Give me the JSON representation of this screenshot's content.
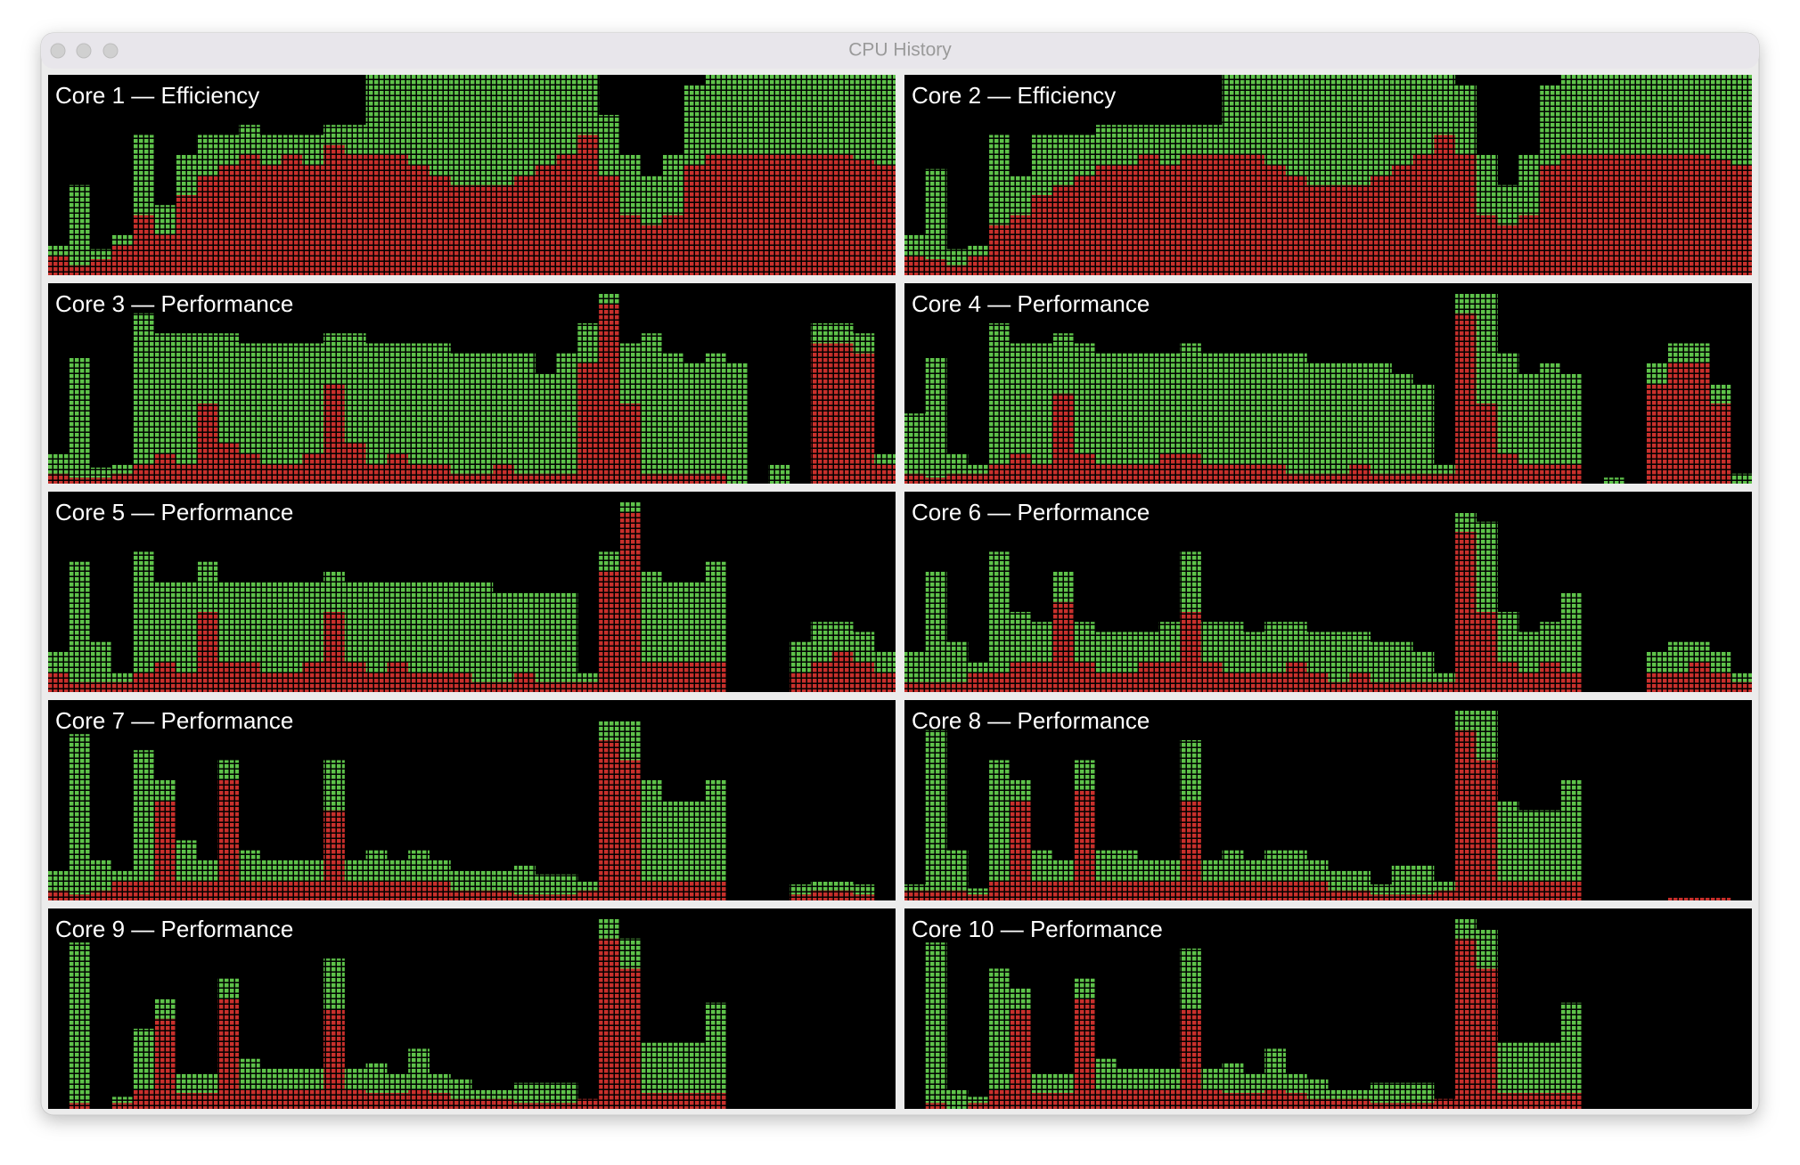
{
  "window": {
    "title": "CPU History"
  },
  "chart_data": [
    {
      "type": "bar",
      "stacked": true,
      "title": "Core 1 — Efficiency",
      "ylim": [
        0,
        100
      ],
      "series": [
        {
          "color": "#c8302c",
          "values": [
            10,
            5,
            8,
            15,
            30,
            20,
            40,
            50,
            55,
            60,
            55,
            60,
            55,
            65,
            60,
            60,
            60,
            55,
            50,
            45,
            45,
            45,
            50,
            55,
            60,
            70,
            50,
            30,
            25,
            30,
            55,
            60,
            60,
            60,
            60,
            60,
            60,
            60,
            58,
            55
          ]
        },
        {
          "color": "#5ec24a",
          "values": [
            5,
            40,
            5,
            5,
            40,
            15,
            20,
            20,
            15,
            15,
            15,
            10,
            15,
            10,
            15,
            40,
            40,
            45,
            50,
            55,
            55,
            55,
            50,
            45,
            40,
            30,
            30,
            30,
            25,
            30,
            40,
            40,
            40,
            40,
            40,
            40,
            40,
            40,
            42,
            45
          ]
        }
      ]
    },
    {
      "type": "bar",
      "stacked": true,
      "title": "Core 2 — Efficiency",
      "ylim": [
        0,
        100
      ],
      "series": [
        {
          "color": "#c8302c",
          "values": [
            10,
            8,
            5,
            10,
            25,
            30,
            40,
            45,
            50,
            55,
            55,
            60,
            55,
            60,
            60,
            60,
            60,
            55,
            50,
            45,
            45,
            45,
            50,
            55,
            60,
            70,
            60,
            30,
            25,
            30,
            55,
            60,
            60,
            60,
            60,
            60,
            60,
            60,
            58,
            55
          ]
        },
        {
          "color": "#5ec24a",
          "values": [
            10,
            45,
            8,
            5,
            45,
            20,
            30,
            25,
            20,
            20,
            20,
            15,
            20,
            15,
            15,
            40,
            40,
            45,
            50,
            55,
            55,
            55,
            50,
            45,
            40,
            30,
            35,
            30,
            20,
            30,
            40,
            40,
            40,
            40,
            40,
            40,
            40,
            40,
            42,
            45
          ]
        }
      ]
    },
    {
      "type": "bar",
      "stacked": true,
      "title": "Core 3 — Performance",
      "ylim": [
        0,
        100
      ],
      "series": [
        {
          "color": "#c8302c",
          "values": [
            5,
            3,
            3,
            5,
            10,
            15,
            10,
            40,
            20,
            15,
            10,
            10,
            15,
            50,
            20,
            10,
            15,
            10,
            10,
            5,
            5,
            10,
            5,
            5,
            5,
            60,
            90,
            40,
            5,
            5,
            5,
            5,
            0,
            0,
            0,
            0,
            70,
            70,
            65,
            10
          ]
        },
        {
          "color": "#5ec24a",
          "values": [
            10,
            60,
            5,
            5,
            75,
            60,
            65,
            35,
            55,
            55,
            60,
            60,
            55,
            25,
            55,
            60,
            55,
            60,
            60,
            60,
            60,
            55,
            60,
            50,
            60,
            20,
            5,
            30,
            70,
            60,
            55,
            60,
            60,
            0,
            10,
            0,
            10,
            10,
            10,
            5
          ]
        }
      ]
    },
    {
      "type": "bar",
      "stacked": true,
      "title": "Core 4 — Performance",
      "ylim": [
        0,
        100
      ],
      "series": [
        {
          "color": "#c8302c",
          "values": [
            5,
            3,
            5,
            5,
            10,
            15,
            10,
            45,
            15,
            10,
            10,
            10,
            15,
            15,
            10,
            10,
            10,
            10,
            5,
            5,
            5,
            10,
            5,
            5,
            5,
            5,
            85,
            40,
            15,
            10,
            10,
            10,
            0,
            0,
            0,
            50,
            60,
            60,
            40,
            0
          ]
        },
        {
          "color": "#5ec24a",
          "values": [
            30,
            60,
            10,
            5,
            70,
            55,
            60,
            30,
            55,
            55,
            55,
            55,
            50,
            55,
            55,
            55,
            55,
            55,
            60,
            55,
            55,
            50,
            55,
            50,
            45,
            5,
            10,
            55,
            50,
            45,
            50,
            45,
            0,
            3,
            0,
            10,
            10,
            10,
            10,
            5
          ]
        }
      ]
    },
    {
      "type": "bar",
      "stacked": true,
      "title": "Core 5 — Performance",
      "ylim": [
        0,
        100
      ],
      "series": [
        {
          "color": "#c8302c",
          "values": [
            10,
            5,
            5,
            5,
            10,
            15,
            10,
            40,
            15,
            15,
            10,
            10,
            15,
            40,
            15,
            10,
            15,
            10,
            10,
            10,
            5,
            5,
            10,
            5,
            5,
            5,
            60,
            90,
            15,
            15,
            15,
            15,
            0,
            0,
            0,
            10,
            15,
            20,
            15,
            10
          ]
        },
        {
          "color": "#5ec24a",
          "values": [
            10,
            60,
            20,
            5,
            60,
            40,
            45,
            25,
            40,
            40,
            45,
            45,
            40,
            20,
            40,
            45,
            40,
            45,
            45,
            45,
            50,
            45,
            40,
            45,
            45,
            5,
            10,
            5,
            45,
            40,
            40,
            50,
            0,
            0,
            0,
            15,
            20,
            15,
            15,
            10
          ]
        }
      ]
    },
    {
      "type": "bar",
      "stacked": true,
      "title": "Core 6 — Performance",
      "ylim": [
        0,
        100
      ],
      "series": [
        {
          "color": "#c8302c",
          "values": [
            5,
            5,
            5,
            10,
            10,
            15,
            15,
            45,
            15,
            10,
            10,
            15,
            15,
            40,
            15,
            10,
            10,
            10,
            15,
            10,
            5,
            10,
            5,
            5,
            5,
            5,
            80,
            40,
            15,
            10,
            15,
            10,
            0,
            0,
            0,
            10,
            10,
            15,
            10,
            5
          ]
        },
        {
          "color": "#5ec24a",
          "values": [
            15,
            55,
            20,
            5,
            60,
            25,
            20,
            15,
            20,
            20,
            20,
            15,
            20,
            30,
            20,
            25,
            20,
            25,
            20,
            20,
            25,
            20,
            20,
            20,
            15,
            5,
            10,
            45,
            25,
            20,
            20,
            40,
            0,
            0,
            0,
            10,
            15,
            10,
            10,
            5
          ]
        }
      ]
    },
    {
      "type": "bar",
      "stacked": true,
      "title": "Core 7 — Performance",
      "ylim": [
        0,
        100
      ],
      "series": [
        {
          "color": "#c8302c",
          "values": [
            5,
            3,
            5,
            10,
            10,
            50,
            10,
            10,
            60,
            10,
            10,
            10,
            10,
            45,
            10,
            10,
            10,
            10,
            10,
            5,
            5,
            5,
            3,
            3,
            3,
            5,
            80,
            70,
            10,
            10,
            10,
            10,
            0,
            0,
            0,
            3,
            5,
            5,
            3,
            0
          ]
        },
        {
          "color": "#5ec24a",
          "values": [
            10,
            80,
            15,
            5,
            65,
            10,
            20,
            10,
            10,
            15,
            10,
            10,
            10,
            25,
            10,
            15,
            10,
            15,
            10,
            10,
            10,
            10,
            15,
            10,
            10,
            5,
            10,
            20,
            50,
            40,
            40,
            50,
            0,
            0,
            0,
            5,
            5,
            5,
            5,
            0
          ]
        }
      ]
    },
    {
      "type": "bar",
      "stacked": true,
      "title": "Core 8 — Performance",
      "ylim": [
        0,
        100
      ],
      "series": [
        {
          "color": "#c8302c",
          "values": [
            5,
            5,
            5,
            3,
            10,
            50,
            10,
            10,
            55,
            10,
            10,
            10,
            10,
            50,
            10,
            10,
            10,
            10,
            10,
            10,
            5,
            5,
            3,
            3,
            3,
            5,
            85,
            70,
            10,
            10,
            10,
            10,
            0,
            0,
            0,
            0,
            2,
            2,
            2,
            0
          ]
        },
        {
          "color": "#5ec24a",
          "values": [
            3,
            80,
            20,
            3,
            60,
            10,
            15,
            10,
            15,
            15,
            15,
            10,
            10,
            30,
            10,
            15,
            10,
            15,
            15,
            10,
            10,
            10,
            5,
            15,
            15,
            5,
            10,
            25,
            40,
            35,
            35,
            50,
            0,
            0,
            0,
            0,
            0,
            0,
            0,
            0
          ]
        }
      ]
    },
    {
      "type": "bar",
      "stacked": true,
      "title": "Core 9 — Performance",
      "ylim": [
        0,
        100
      ],
      "series": [
        {
          "color": "#c8302c",
          "values": [
            0,
            3,
            0,
            3,
            10,
            45,
            8,
            8,
            55,
            10,
            10,
            10,
            10,
            50,
            10,
            8,
            8,
            10,
            8,
            5,
            5,
            5,
            3,
            3,
            3,
            5,
            85,
            70,
            8,
            8,
            8,
            8,
            0,
            0,
            0,
            0,
            0,
            0,
            0,
            0
          ]
        },
        {
          "color": "#5ec24a",
          "values": [
            0,
            80,
            0,
            3,
            30,
            10,
            10,
            10,
            10,
            15,
            10,
            10,
            10,
            25,
            10,
            15,
            10,
            20,
            10,
            10,
            5,
            5,
            10,
            10,
            10,
            0,
            10,
            15,
            25,
            25,
            25,
            45,
            0,
            0,
            0,
            0,
            0,
            0,
            0,
            0
          ]
        }
      ]
    },
    {
      "type": "bar",
      "stacked": true,
      "title": "Core 10 — Performance",
      "ylim": [
        0,
        100
      ],
      "series": [
        {
          "color": "#c8302c",
          "values": [
            0,
            3,
            0,
            3,
            10,
            50,
            8,
            8,
            55,
            10,
            10,
            10,
            10,
            50,
            10,
            8,
            8,
            10,
            8,
            5,
            5,
            5,
            3,
            3,
            3,
            5,
            85,
            70,
            8,
            8,
            8,
            8,
            0,
            0,
            0,
            0,
            0,
            0,
            0,
            0
          ]
        },
        {
          "color": "#5ec24a",
          "values": [
            0,
            80,
            10,
            3,
            60,
            10,
            10,
            10,
            10,
            15,
            10,
            10,
            10,
            30,
            10,
            15,
            10,
            20,
            10,
            10,
            5,
            5,
            10,
            10,
            10,
            0,
            10,
            20,
            25,
            25,
            25,
            45,
            0,
            0,
            0,
            0,
            0,
            0,
            0,
            0
          ]
        }
      ]
    }
  ]
}
